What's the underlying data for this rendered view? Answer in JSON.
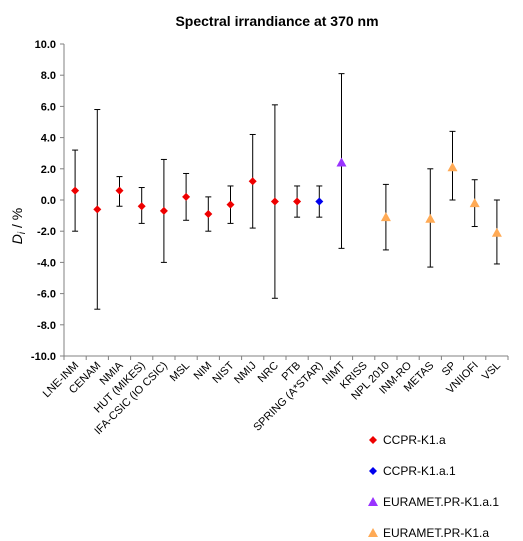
{
  "chart_data": {
    "type": "scatter",
    "title": "Spectral irrandiance at 370 nm",
    "ylabel_main": "D",
    "ylabel_sub": "i",
    "ylabel_rest": " / %",
    "ylim": [
      -10,
      10
    ],
    "yticks": [
      10,
      8,
      6,
      4,
      2,
      0,
      -2,
      -4,
      -6,
      -8,
      -10
    ],
    "ytick_labels": [
      "10.0",
      "8.0",
      "6.0",
      "4.0",
      "2.0",
      "0.0",
      "-2.0",
      "-4.0",
      "-6.0",
      "-8.0",
      "-10.0"
    ],
    "grid": false,
    "legend_position": "bottom-right",
    "categories": [
      "LNE-INM",
      "CENAM",
      "NMIA",
      "HUT (MIKES)",
      "IFA-CSIC (IO CSIC)",
      "MSL",
      "NIM",
      "NIST",
      "NMIJ",
      "NRC",
      "PTB",
      "SPRING (A*STAR)",
      "NIMT",
      "KRISS",
      "NPL 2010",
      "INM-RO",
      "METAS",
      "SP",
      "VNIIOFI",
      "VSL"
    ],
    "series": [
      {
        "name": "CCPR-K1.a",
        "color": "#ee0000",
        "marker": "diamond",
        "points": [
          {
            "category": "LNE-INM",
            "value": 0.6,
            "low": -2.0,
            "high": 3.2
          },
          {
            "category": "CENAM",
            "value": -0.6,
            "low": -7.0,
            "high": 5.8
          },
          {
            "category": "NMIA",
            "value": 0.6,
            "low": -0.4,
            "high": 1.5
          },
          {
            "category": "HUT (MIKES)",
            "value": -0.4,
            "low": -1.5,
            "high": 0.8
          },
          {
            "category": "IFA-CSIC (IO CSIC)",
            "value": -0.7,
            "low": -4.0,
            "high": 2.6
          },
          {
            "category": "MSL",
            "value": 0.2,
            "low": -1.3,
            "high": 1.7
          },
          {
            "category": "NIM",
            "value": -0.9,
            "low": -2.0,
            "high": 0.2
          },
          {
            "category": "NIST",
            "value": -0.3,
            "low": -1.5,
            "high": 0.9
          },
          {
            "category": "NMIJ",
            "value": 1.2,
            "low": -1.8,
            "high": 4.2
          },
          {
            "category": "NRC",
            "value": -0.1,
            "low": -6.3,
            "high": 6.1
          },
          {
            "category": "PTB",
            "value": -0.1,
            "low": -1.1,
            "high": 0.9
          }
        ]
      },
      {
        "name": "CCPR-K1.a.1",
        "color": "#0000ee",
        "marker": "diamond",
        "points": [
          {
            "category": "SPRING (A*STAR)",
            "value": -0.1,
            "low": -1.1,
            "high": 0.9
          }
        ]
      },
      {
        "name": "EURAMET.PR-K1.a.1",
        "color": "#9933ff",
        "marker": "triangle",
        "points": [
          {
            "category": "NIMT",
            "value": 2.4,
            "low": -3.1,
            "high": 8.1
          }
        ]
      },
      {
        "name": "EURAMET.PR-K1.a",
        "color": "#ffaa55",
        "marker": "triangle",
        "points": [
          {
            "category": "NPL 2010",
            "value": -1.1,
            "low": -3.2,
            "high": 1.0
          },
          {
            "category": "METAS",
            "value": -1.2,
            "low": -4.3,
            "high": 2.0
          },
          {
            "category": "SP",
            "value": 2.1,
            "low": 0.0,
            "high": 4.4
          },
          {
            "category": "VNIIOFI",
            "value": -0.2,
            "low": -1.7,
            "high": 1.3
          },
          {
            "category": "VSL",
            "value": -2.1,
            "low": -4.1,
            "high": 0.0
          }
        ]
      }
    ]
  }
}
